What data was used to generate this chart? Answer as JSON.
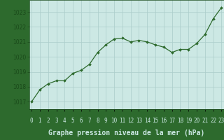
{
  "x": [
    0,
    1,
    2,
    3,
    4,
    5,
    6,
    7,
    8,
    9,
    10,
    11,
    12,
    13,
    14,
    15,
    16,
    17,
    18,
    19,
    20,
    21,
    22,
    23
  ],
  "y": [
    1017.0,
    1017.8,
    1018.2,
    1018.4,
    1018.4,
    1018.9,
    1019.1,
    1019.5,
    1020.3,
    1020.8,
    1021.2,
    1021.25,
    1021.0,
    1021.1,
    1021.0,
    1020.8,
    1020.65,
    1020.3,
    1020.5,
    1020.5,
    1020.9,
    1021.5,
    1022.55,
    1023.3
  ],
  "line_color": "#2d6a2d",
  "marker_color": "#2d6a2d",
  "bg_plot": "#cce8e4",
  "bg_bottom": "#2d6a2d",
  "grid_color": "#aaccca",
  "ylabel_ticks": [
    1017,
    1018,
    1019,
    1020,
    1021,
    1022,
    1023
  ],
  "xlabel_label": "Graphe pression niveau de la mer (hPa)",
  "xlim": [
    -0.3,
    23.3
  ],
  "ylim": [
    1016.5,
    1023.8
  ],
  "tick_color": "#1a4a1a",
  "label_text_color": "#cce8e4",
  "tick_fontsize": 5.5,
  "xlabel_fontsize": 7.0,
  "bottom_bar_height": 0.22
}
